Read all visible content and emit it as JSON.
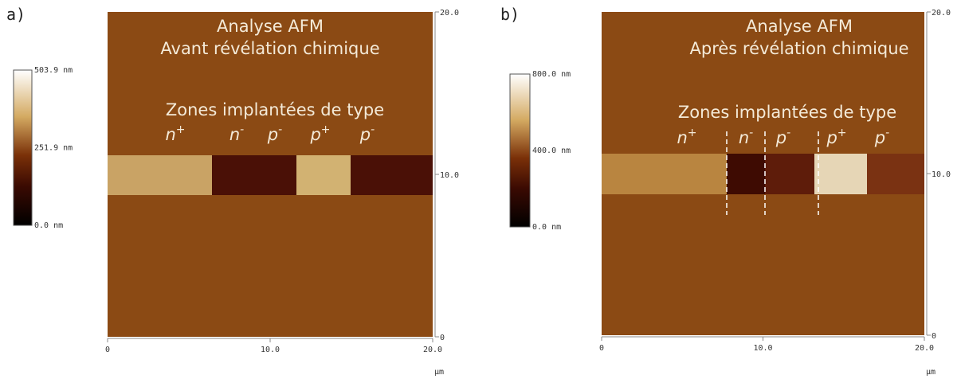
{
  "panels": [
    {
      "label": "a)",
      "title": [
        "Analyse AFM",
        "Avant révélation chimique"
      ],
      "zones_heading": "Zones implantées de type",
      "zones": [
        {
          "base": "n",
          "sup": "+"
        },
        {
          "base": "n",
          "sup": "-"
        },
        {
          "base": "p",
          "sup": "-"
        },
        {
          "base": "p",
          "sup": "+"
        },
        {
          "base": "p",
          "sup": "-"
        }
      ],
      "x_ticks": [
        "0",
        "10.0",
        "20.0"
      ],
      "y_ticks": [
        "20.0",
        "10.0",
        "0"
      ],
      "unit": "µm",
      "scale_labels": [
        "503.9 nm",
        "251.9 nm",
        "0.0 nm"
      ]
    },
    {
      "label": "b)",
      "title": [
        "Analyse AFM",
        "Après révélation chimique"
      ],
      "zones_heading": "Zones implantées de type",
      "zones": [
        {
          "base": "n",
          "sup": "+"
        },
        {
          "base": "n",
          "sup": "-"
        },
        {
          "base": "p",
          "sup": "-"
        },
        {
          "base": "p",
          "sup": "+"
        },
        {
          "base": "p",
          "sup": "-"
        }
      ],
      "x_ticks": [
        "0",
        "10.0",
        "20.0"
      ],
      "y_ticks": [
        "20.0",
        "10.0",
        "0"
      ],
      "unit": "µm",
      "scale_labels": [
        "800.0 nm",
        "400.0 nm",
        "0.0 nm"
      ]
    }
  ]
}
